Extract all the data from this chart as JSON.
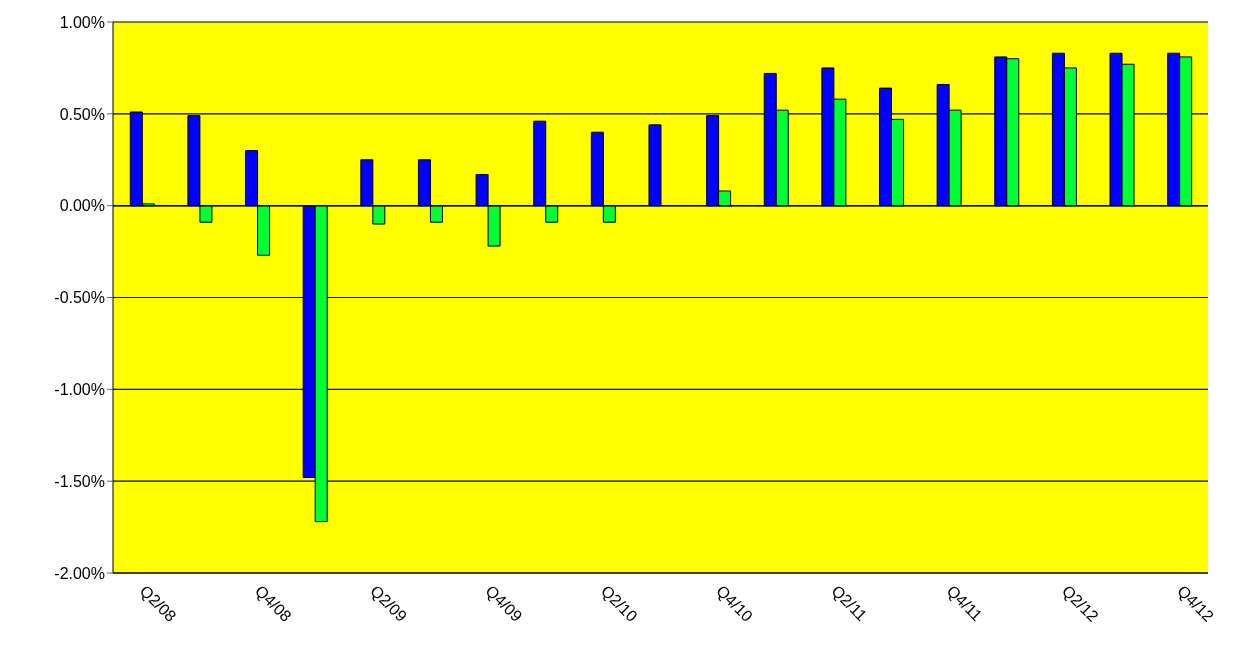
{
  "chart_data": {
    "type": "bar",
    "categories": [
      "Q2/08",
      null,
      "Q4/08",
      null,
      "Q2/09",
      null,
      "Q4/09",
      null,
      "Q2/10",
      null,
      "Q4/10",
      null,
      "Q2/11",
      null,
      "Q4/11",
      null,
      "Q2/12",
      null,
      "Q4/12"
    ],
    "series": [
      {
        "color": "#0000ff",
        "values": [
          0.51,
          0.49,
          0.3,
          -1.48,
          0.25,
          0.25,
          0.17,
          0.46,
          0.4,
          0.44,
          0.49,
          0.72,
          0.75,
          0.64,
          0.66,
          0.81,
          0.83,
          0.83,
          0.83
        ]
      },
      {
        "color": "#00ff33",
        "values": [
          0.01,
          -0.09,
          -0.27,
          -1.72,
          -0.1,
          -0.09,
          -0.22,
          -0.09,
          -0.09,
          0.0,
          0.08,
          0.52,
          0.58,
          0.47,
          0.52,
          0.8,
          0.75,
          0.77,
          0.81
        ]
      }
    ],
    "ylim": [
      -2,
      1
    ],
    "yticks": [
      {
        "value": -2,
        "label": "-2.00%"
      },
      {
        "value": -1.5,
        "label": "-1.50%"
      },
      {
        "value": -1,
        "label": "-1.00%"
      },
      {
        "value": -0.5,
        "label": "-0.50%"
      },
      {
        "value": 0,
        "label": "0.00%"
      },
      {
        "value": 0.5,
        "label": "0.50%"
      },
      {
        "value": 1,
        "label": "1.00%"
      }
    ],
    "grid": "y",
    "legend": false
  }
}
